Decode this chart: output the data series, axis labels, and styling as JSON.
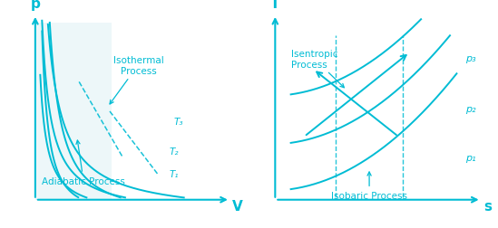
{
  "cyan": "#00BCD4",
  "bg_color": "#ffffff",
  "light_fill": "#cce9f0",
  "fig_width": 5.49,
  "fig_height": 2.53,
  "dpi": 100,
  "left_title_p": "p",
  "left_title_v": "V",
  "right_title_t": "T",
  "right_title_s": "s",
  "left_label_isothermal": "Isothermal\nProcess",
  "left_label_adiabatic": "Adiabatic Process",
  "left_labels_T": [
    "T₁",
    "T₂",
    "T₃"
  ],
  "right_label_isentropic": "Isentropic\nProcess",
  "right_label_isobaric": "Isobaric Process",
  "right_labels_p": [
    "p₁",
    "p₂",
    "p₃"
  ]
}
